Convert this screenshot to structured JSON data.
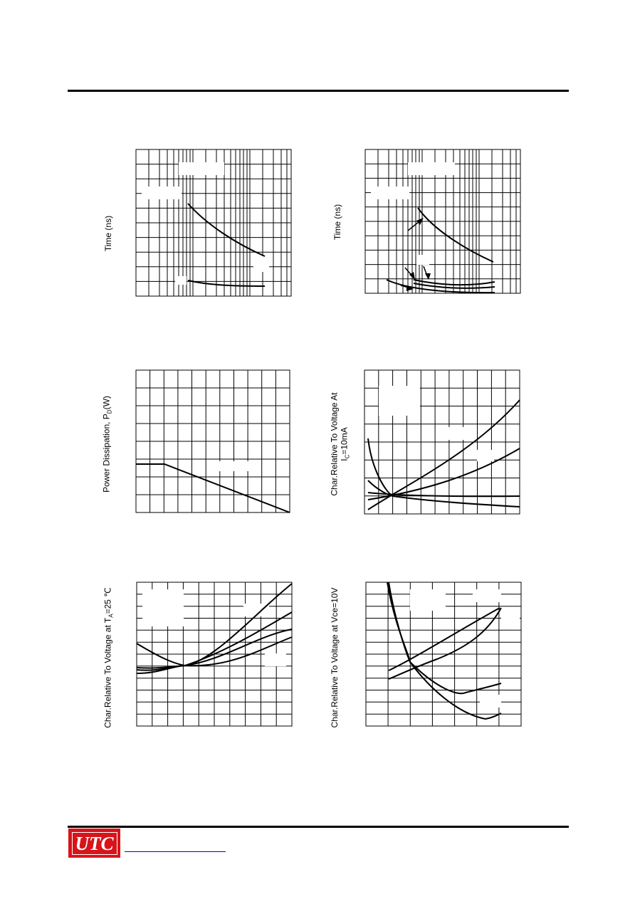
{
  "charts": {
    "switching_time_1": {
      "ylabel": "Time (ns)"
    },
    "switching_time_2": {
      "ylabel": "Time (ns)"
    },
    "power_dissipation": {
      "ylabel_main": "Power Dissipation, P",
      "ylabel_sub": "D",
      "ylabel_unit": "(W)"
    },
    "relative_at_ic": {
      "ylabel_line1": "Char.Relative To Voltage At",
      "ylabel_line2_main": "I",
      "ylabel_line2_sub": "C",
      "ylabel_line2_rest": "=10mA"
    },
    "relative_at_ta": {
      "ylabel_main": "Char.Relative To Voltage at T",
      "ylabel_sub": "A",
      "ylabel_rest": "=25 ℃"
    },
    "relative_at_vce": {
      "ylabel": "Char.Relative To Voltage at Vce=10V"
    }
  },
  "footer": {
    "logo_text": "UTC"
  },
  "colors": {
    "logo_red": "#d7141a",
    "link_blue": "#0000ee"
  }
}
